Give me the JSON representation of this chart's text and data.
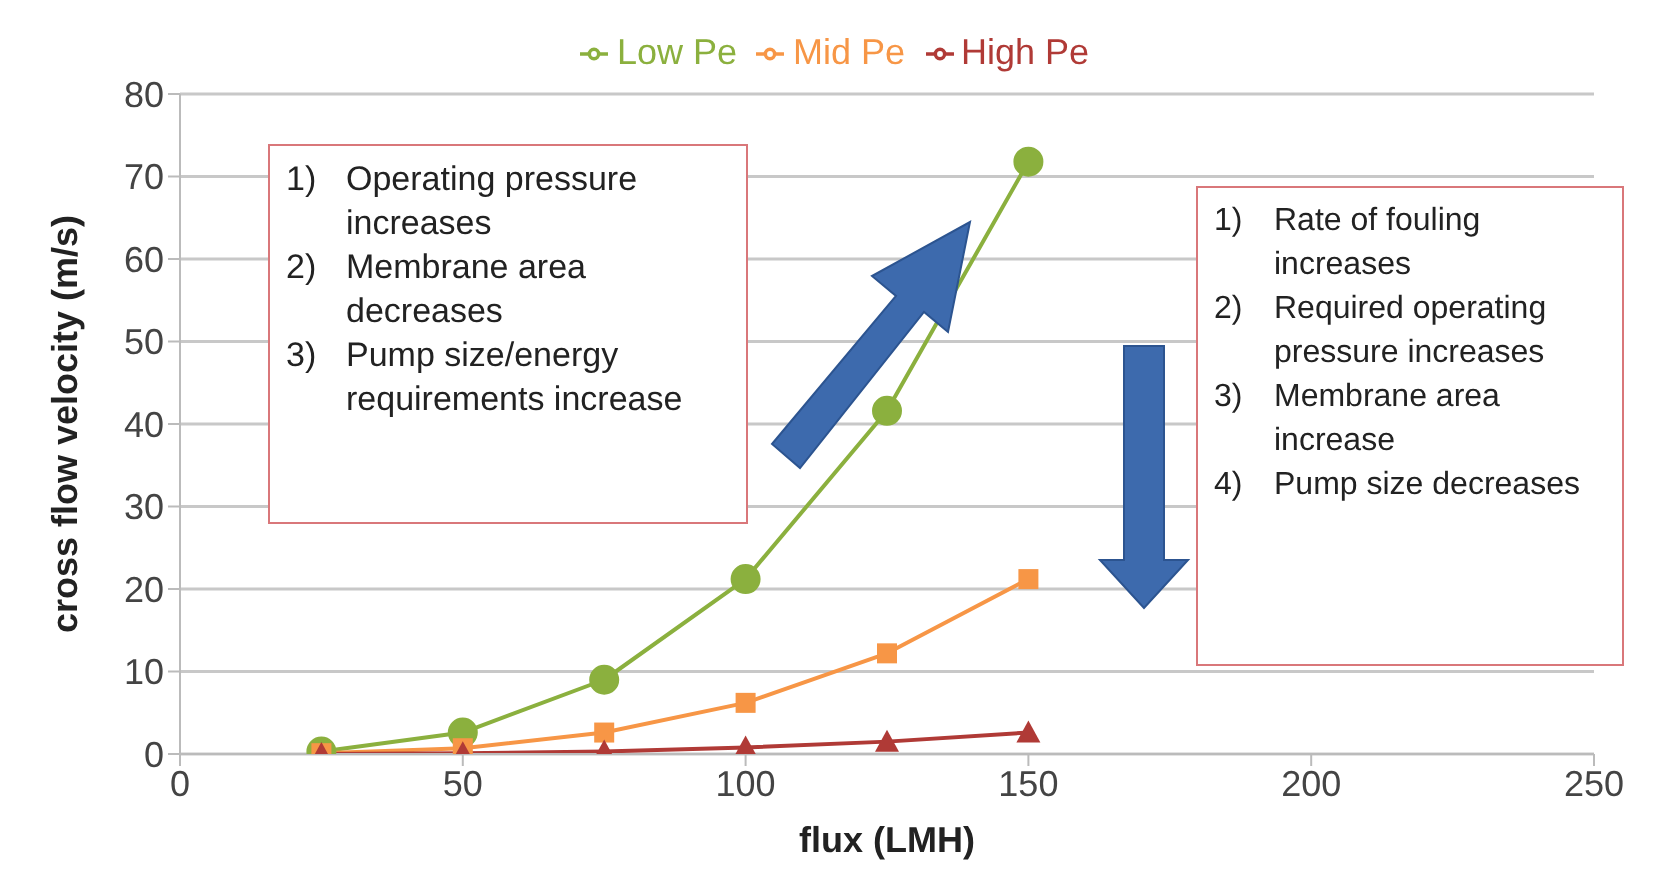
{
  "chart_data": {
    "type": "line",
    "xlabel": "flux (LMH)",
    "ylabel": "cross flow velocity (m/s)",
    "x": [
      25,
      50,
      75,
      100,
      125,
      150
    ],
    "series": [
      {
        "name": "Low Pe",
        "color": "#8bb03e",
        "marker": "circle",
        "values": [
          0.3,
          2.6,
          9,
          21.2,
          41.6,
          71.8
        ]
      },
      {
        "name": "Mid Pe",
        "color": "#f79646",
        "marker": "square",
        "values": [
          0.1,
          0.7,
          2.6,
          6.2,
          12.2,
          21.2
        ]
      },
      {
        "name": "High Pe",
        "color": "#b03a36",
        "marker": "triangle",
        "values": [
          0,
          0.1,
          0.3,
          0.8,
          1.5,
          2.6
        ]
      }
    ],
    "xlim": [
      0,
      250
    ],
    "xticks": [
      0,
      50,
      100,
      150,
      200,
      250
    ],
    "ylim": [
      0,
      80
    ],
    "yticks": [
      0,
      10,
      20,
      30,
      40,
      50,
      60,
      70,
      80
    ],
    "grid": "y",
    "legend": "top",
    "annotations": [
      "1)\tOperating pressure increases\n2)\tMembrane area decreases\n3)\tPump size/energy requirements increase",
      "1)\tRate of fouling increases\n2)\tRequired operating pressure increases\n3)\tMembrane area increase\n4)\tPump size decreases"
    ]
  }
}
